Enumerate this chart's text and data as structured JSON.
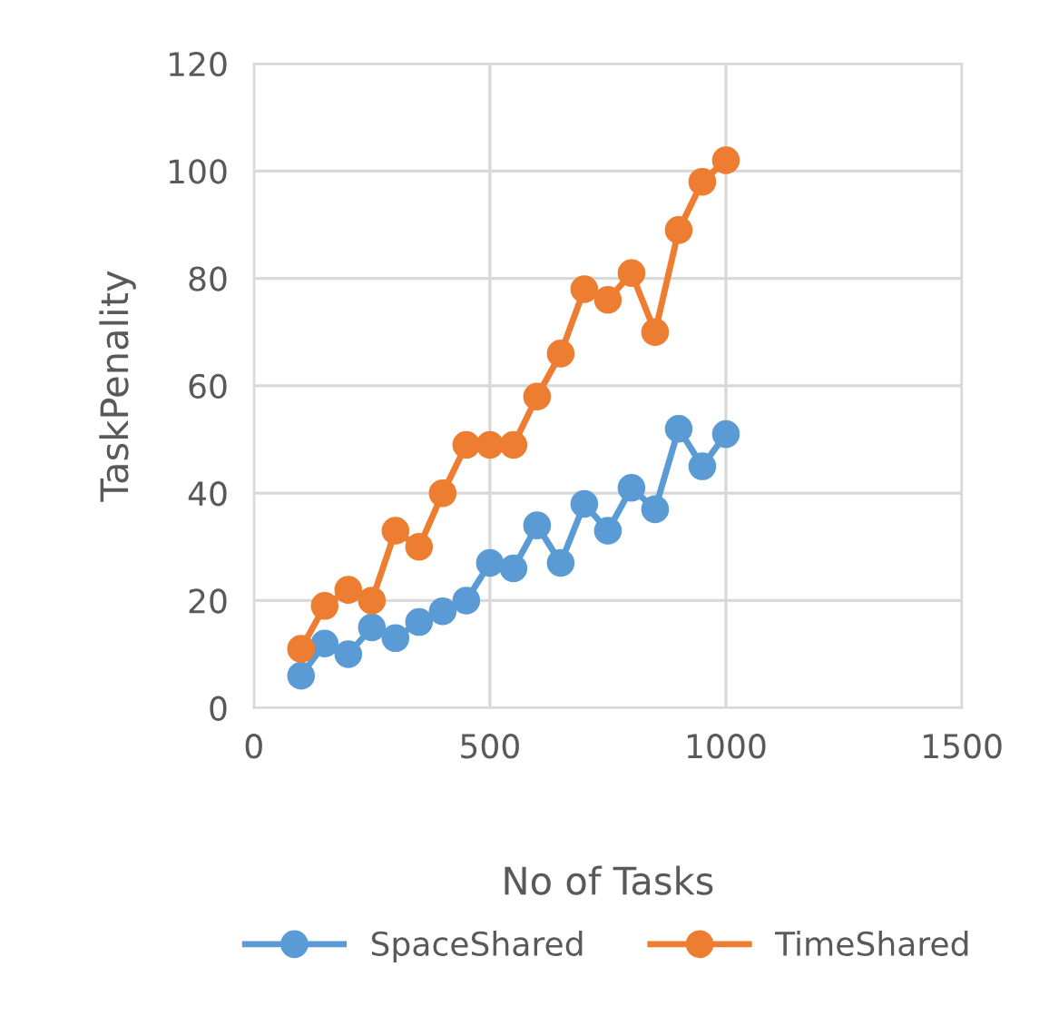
{
  "chart_data": {
    "type": "line",
    "xlabel": "No of Tasks",
    "ylabel": "TaskPenality",
    "x": [
      100,
      150,
      200,
      250,
      300,
      350,
      400,
      450,
      500,
      550,
      600,
      650,
      700,
      750,
      800,
      850,
      900,
      950,
      1000
    ],
    "series": [
      {
        "name": "SpaceShared",
        "color": "#5b9bd5",
        "values": [
          6,
          12,
          10,
          15,
          13,
          16,
          18,
          20,
          27,
          26,
          34,
          27,
          38,
          33,
          41,
          37,
          52,
          45,
          51
        ]
      },
      {
        "name": "TimeShared",
        "color": "#ed7d31",
        "values": [
          11,
          19,
          22,
          20,
          33,
          30,
          40,
          49,
          49,
          49,
          58,
          66,
          78,
          76,
          81,
          70,
          89,
          98,
          102
        ]
      }
    ],
    "xlim": [
      0,
      1500
    ],
    "xticks": [
      0,
      500,
      1000,
      1500
    ],
    "ylim": [
      0,
      120
    ],
    "yticks": [
      0,
      20,
      40,
      60,
      80,
      100,
      120
    ],
    "grid": true,
    "legend": "bottom",
    "marker": "circle",
    "line_style": "solid"
  }
}
